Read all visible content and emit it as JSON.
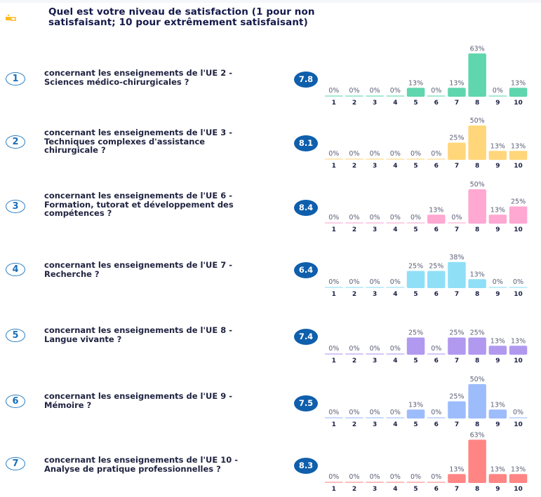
{
  "header": {
    "icon": "stars-rating-icon",
    "title_line1": "Quel est votre niveau de satisfaction (1 pour non",
    "title_line2": "satisfaisant; 10 pour extrêmement satisfaisant)"
  },
  "questions": [
    {
      "number": "1",
      "lines": [
        "concernant les enseignements de l'UE 2 -",
        "Sciences médico-chirurgicales ?"
      ],
      "score": "7.8",
      "color": "#5fd6ae"
    },
    {
      "number": "2",
      "lines": [
        "concernant les enseignements de l'UE 3 -",
        "Techniques complexes d'assistance",
        "chirurgicale ?"
      ],
      "score": "8.1",
      "color": "#ffd67a"
    },
    {
      "number": "3",
      "lines": [
        "concernant les enseignements de l'UE 6 -",
        "Formation, tutorat et développement des",
        "compétences  ?"
      ],
      "score": "8.4",
      "color": "#ffa8d2"
    },
    {
      "number": "4",
      "lines": [
        "concernant les enseignements de l'UE 7 -",
        "Recherche ?"
      ],
      "score": "6.4",
      "color": "#8fdff7"
    },
    {
      "number": "5",
      "lines": [
        "concernant les enseignements de l'UE 8 -",
        "Langue vivante  ?"
      ],
      "score": "7.4",
      "color": "#b199f0"
    },
    {
      "number": "6",
      "lines": [
        "concernant les enseignements de l'UE 9 -",
        "Mémoire ?"
      ],
      "score": "7.5",
      "color": "#9dbcfb"
    },
    {
      "number": "7",
      "lines": [
        "concernant les enseignements de l'UE 10 -",
        "Analyse de pratique professionnelles  ?"
      ],
      "score": "8.3",
      "color": "#ff8585"
    }
  ],
  "chart_data": [
    {
      "type": "bar",
      "title": "concernant les enseignements de l'UE 2 - Sciences médico-chirurgicales ?",
      "categories": [
        "1",
        "2",
        "3",
        "4",
        "5",
        "6",
        "7",
        "8",
        "9",
        "10"
      ],
      "values": [
        0,
        0,
        0,
        0,
        13,
        0,
        13,
        63,
        0,
        13
      ],
      "labels": [
        "0%",
        "0%",
        "0%",
        "0%",
        "13%",
        "0%",
        "13%",
        "63%",
        "0%",
        "13%"
      ],
      "unit": "%",
      "ylim": [
        0,
        63
      ],
      "grid": false,
      "mean": 7.8
    },
    {
      "type": "bar",
      "title": "concernant les enseignements de l'UE 3 - Techniques complexes d'assistance chirurgicale ?",
      "categories": [
        "1",
        "2",
        "3",
        "4",
        "5",
        "6",
        "7",
        "8",
        "9",
        "10"
      ],
      "values": [
        0,
        0,
        0,
        0,
        0,
        0,
        25,
        50,
        13,
        13
      ],
      "labels": [
        "0%",
        "0%",
        "0%",
        "0%",
        "0%",
        "0%",
        "25%",
        "50%",
        "13%",
        "13%"
      ],
      "unit": "%",
      "ylim": [
        0,
        63
      ],
      "grid": false,
      "mean": 8.1
    },
    {
      "type": "bar",
      "title": "concernant les enseignements de l'UE 6 - Formation, tutorat et développement des compétences ?",
      "categories": [
        "1",
        "2",
        "3",
        "4",
        "5",
        "6",
        "7",
        "8",
        "9",
        "10"
      ],
      "values": [
        0,
        0,
        0,
        0,
        0,
        13,
        0,
        50,
        13,
        25
      ],
      "labels": [
        "0%",
        "0%",
        "0%",
        "0%",
        "0%",
        "13%",
        "0%",
        "50%",
        "13%",
        "25%"
      ],
      "unit": "%",
      "ylim": [
        0,
        63
      ],
      "grid": false,
      "mean": 8.4
    },
    {
      "type": "bar",
      "title": "concernant les enseignements de l'UE 7 - Recherche ?",
      "categories": [
        "1",
        "2",
        "3",
        "4",
        "5",
        "6",
        "7",
        "8",
        "9",
        "10"
      ],
      "values": [
        0,
        0,
        0,
        0,
        25,
        25,
        38,
        13,
        0,
        0
      ],
      "labels": [
        "0%",
        "0%",
        "0%",
        "0%",
        "25%",
        "25%",
        "38%",
        "13%",
        "0%",
        "0%"
      ],
      "unit": "%",
      "ylim": [
        0,
        63
      ],
      "grid": false,
      "mean": 6.4
    },
    {
      "type": "bar",
      "title": "concernant les enseignements de l'UE 8 - Langue vivante ?",
      "categories": [
        "1",
        "2",
        "3",
        "4",
        "5",
        "6",
        "7",
        "8",
        "9",
        "10"
      ],
      "values": [
        0,
        0,
        0,
        0,
        25,
        0,
        25,
        25,
        13,
        13
      ],
      "labels": [
        "0%",
        "0%",
        "0%",
        "0%",
        "25%",
        "0%",
        "25%",
        "25%",
        "13%",
        "13%"
      ],
      "unit": "%",
      "ylim": [
        0,
        63
      ],
      "grid": false,
      "mean": 7.4
    },
    {
      "type": "bar",
      "title": "concernant les enseignements de l'UE 9 - Mémoire ?",
      "categories": [
        "1",
        "2",
        "3",
        "4",
        "5",
        "6",
        "7",
        "8",
        "9",
        "10"
      ],
      "values": [
        0,
        0,
        0,
        0,
        13,
        0,
        25,
        50,
        13,
        0
      ],
      "labels": [
        "0%",
        "0%",
        "0%",
        "0%",
        "13%",
        "0%",
        "25%",
        "50%",
        "13%",
        "0%"
      ],
      "unit": "%",
      "ylim": [
        0,
        63
      ],
      "grid": false,
      "mean": 7.5
    },
    {
      "type": "bar",
      "title": "concernant les enseignements de l'UE 10 - Analyse de pratique professionnelles ?",
      "categories": [
        "1",
        "2",
        "3",
        "4",
        "5",
        "6",
        "7",
        "8",
        "9",
        "10"
      ],
      "values": [
        0,
        0,
        0,
        0,
        0,
        0,
        13,
        63,
        13,
        13
      ],
      "labels": [
        "0%",
        "0%",
        "0%",
        "0%",
        "0%",
        "0%",
        "13%",
        "63%",
        "13%",
        "13%"
      ],
      "unit": "%",
      "ylim": [
        0,
        63
      ],
      "grid": false,
      "mean": 8.3
    }
  ]
}
